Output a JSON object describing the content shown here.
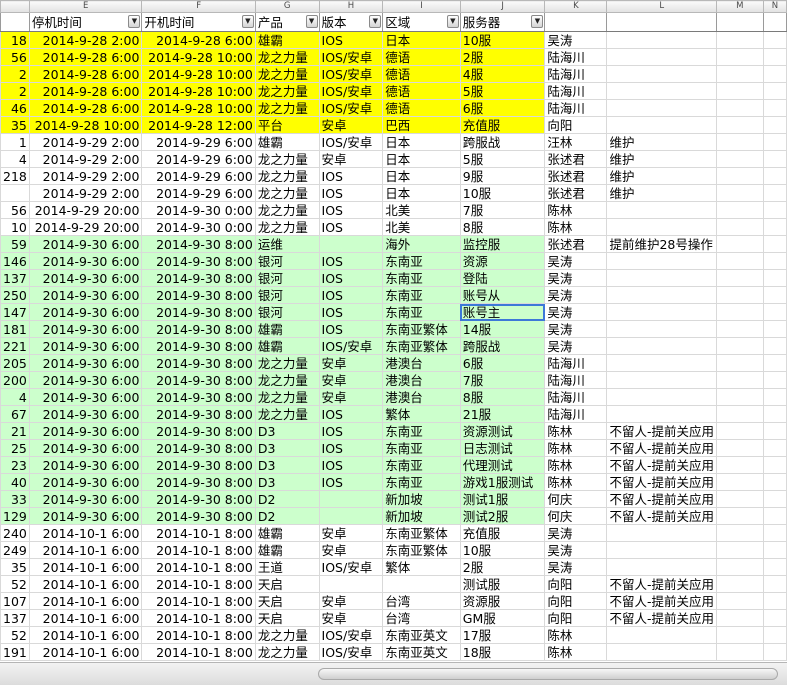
{
  "column_letters": [
    "",
    "E",
    "F",
    "G",
    "H",
    "I",
    "J",
    "K",
    "L",
    "M",
    "N"
  ],
  "filter_headers": [
    "",
    "停机时间",
    "开机时间",
    "产品",
    "版本",
    "区域",
    "服务器",
    "",
    "",
    "",
    ""
  ],
  "filter_icon": "dropdown-arrow-icon",
  "fill_colors": {
    "yellow": "#ffff00",
    "green": "#ccffcc",
    "selection": "#3d78d8"
  },
  "rows": [
    {
      "fill": "yellow",
      "cells": [
        "18",
        "2014-9-28 2:00",
        "2014-9-28 6:00",
        "雄霸",
        "IOS",
        "日本",
        "10服",
        "吴涛",
        "",
        ""
      ]
    },
    {
      "fill": "yellow",
      "cells": [
        "56",
        "2014-9-28 6:00",
        "2014-9-28 10:00",
        "龙之力量",
        "IOS/安卓",
        "德语",
        "2服",
        "陆海川",
        "",
        ""
      ]
    },
    {
      "fill": "yellow",
      "cells": [
        "2",
        "2014-9-28 6:00",
        "2014-9-28 10:00",
        "龙之力量",
        "IOS/安卓",
        "德语",
        "4服",
        "陆海川",
        "",
        ""
      ]
    },
    {
      "fill": "yellow",
      "cells": [
        "2",
        "2014-9-28 6:00",
        "2014-9-28 10:00",
        "龙之力量",
        "IOS/安卓",
        "德语",
        "5服",
        "陆海川",
        "",
        ""
      ]
    },
    {
      "fill": "yellow",
      "cells": [
        "46",
        "2014-9-28 6:00",
        "2014-9-28 10:00",
        "龙之力量",
        "IOS/安卓",
        "德语",
        "6服",
        "陆海川",
        "",
        ""
      ]
    },
    {
      "fill": "yellow",
      "cells": [
        "35",
        "2014-9-28 10:00",
        "2014-9-28 12:00",
        "平台",
        "安卓",
        "巴西",
        "充值服",
        "向阳",
        "",
        ""
      ]
    },
    {
      "fill": "white",
      "cells": [
        "1",
        "2014-9-29 2:00",
        "2014-9-29 6:00",
        "雄霸",
        "IOS/安卓",
        "日本",
        "跨服战",
        "汪林",
        "维护",
        ""
      ]
    },
    {
      "fill": "white",
      "cells": [
        "4",
        "2014-9-29 2:00",
        "2014-9-29 6:00",
        "龙之力量",
        "安卓",
        "日本",
        "5服",
        "张述君",
        "维护",
        ""
      ]
    },
    {
      "fill": "white",
      "cells": [
        "218",
        "2014-9-29 2:00",
        "2014-9-29 6:00",
        "龙之力量",
        "IOS",
        "日本",
        "9服",
        "张述君",
        "维护",
        ""
      ]
    },
    {
      "fill": "white",
      "cells": [
        "",
        "2014-9-29 2:00",
        "2014-9-29 6:00",
        "龙之力量",
        "IOS",
        "日本",
        "10服",
        "张述君",
        "维护",
        ""
      ]
    },
    {
      "fill": "white",
      "cells": [
        "56",
        "2014-9-29 20:00",
        "2014-9-30 0:00",
        "龙之力量",
        "IOS",
        "北美",
        "7服",
        "陈林",
        "",
        ""
      ]
    },
    {
      "fill": "white",
      "cells": [
        "10",
        "2014-9-29 20:00",
        "2014-9-30 0:00",
        "龙之力量",
        "IOS",
        "北美",
        "8服",
        "陈林",
        "",
        ""
      ]
    },
    {
      "fill": "green",
      "cells": [
        "59",
        "2014-9-30 6:00",
        "2014-9-30 8:00",
        "运维",
        "",
        "海外",
        "监控服",
        "张述君",
        "提前维护28号操作",
        ""
      ]
    },
    {
      "fill": "green",
      "cells": [
        "146",
        "2014-9-30 6:00",
        "2014-9-30 8:00",
        "银河",
        "IOS",
        "东南亚",
        "资源",
        "吴涛",
        "",
        ""
      ]
    },
    {
      "fill": "green",
      "cells": [
        "137",
        "2014-9-30 6:00",
        "2014-9-30 8:00",
        "银河",
        "IOS",
        "东南亚",
        "登陆",
        "吴涛",
        "",
        ""
      ]
    },
    {
      "fill": "green",
      "cells": [
        "250",
        "2014-9-30 6:00",
        "2014-9-30 8:00",
        "银河",
        "IOS",
        "东南亚",
        "账号从",
        "吴涛",
        "",
        ""
      ]
    },
    {
      "fill": "green",
      "cells": [
        "147",
        "2014-9-30 6:00",
        "2014-9-30 8:00",
        "银河",
        "IOS",
        "东南亚",
        "账号主",
        "吴涛",
        "",
        ""
      ]
    },
    {
      "fill": "green",
      "cells": [
        "181",
        "2014-9-30 6:00",
        "2014-9-30 8:00",
        "雄霸",
        "IOS",
        "东南亚繁体",
        "14服",
        "吴涛",
        "",
        ""
      ]
    },
    {
      "fill": "green",
      "cells": [
        "221",
        "2014-9-30 6:00",
        "2014-9-30 8:00",
        "雄霸",
        "IOS/安卓",
        "东南亚繁体",
        "跨服战",
        "吴涛",
        "",
        ""
      ]
    },
    {
      "fill": "green",
      "cells": [
        "205",
        "2014-9-30 6:00",
        "2014-9-30 8:00",
        "龙之力量",
        "安卓",
        "港澳台",
        "6服",
        "陆海川",
        "",
        ""
      ]
    },
    {
      "fill": "green",
      "cells": [
        "200",
        "2014-9-30 6:00",
        "2014-9-30 8:00",
        "龙之力量",
        "安卓",
        "港澳台",
        "7服",
        "陆海川",
        "",
        ""
      ]
    },
    {
      "fill": "green",
      "cells": [
        "4",
        "2014-9-30 6:00",
        "2014-9-30 8:00",
        "龙之力量",
        "安卓",
        "港澳台",
        "8服",
        "陆海川",
        "",
        ""
      ]
    },
    {
      "fill": "green",
      "cells": [
        "67",
        "2014-9-30 6:00",
        "2014-9-30 8:00",
        "龙之力量",
        "IOS",
        "繁体",
        "21服",
        "陆海川",
        "",
        ""
      ]
    },
    {
      "fill": "green",
      "cells": [
        "21",
        "2014-9-30 6:00",
        "2014-9-30 8:00",
        "D3",
        "IOS",
        "东南亚",
        "资源测试",
        "陈林",
        "不留人-提前关应用",
        ""
      ]
    },
    {
      "fill": "green",
      "cells": [
        "25",
        "2014-9-30 6:00",
        "2014-9-30 8:00",
        "D3",
        "IOS",
        "东南亚",
        "日志测试",
        "陈林",
        "不留人-提前关应用",
        ""
      ]
    },
    {
      "fill": "green",
      "cells": [
        "23",
        "2014-9-30 6:00",
        "2014-9-30 8:00",
        "D3",
        "IOS",
        "东南亚",
        "代理测试",
        "陈林",
        "不留人-提前关应用",
        ""
      ]
    },
    {
      "fill": "green",
      "cells": [
        "40",
        "2014-9-30 6:00",
        "2014-9-30 8:00",
        "D3",
        "IOS",
        "东南亚",
        "游戏1服测试",
        "陈林",
        "不留人-提前关应用",
        ""
      ]
    },
    {
      "fill": "green",
      "cells": [
        "33",
        "2014-9-30 6:00",
        "2014-9-30 8:00",
        "D2",
        "",
        "新加坡",
        "测试1服",
        "何庆",
        "不留人-提前关应用",
        ""
      ]
    },
    {
      "fill": "green",
      "cells": [
        "129",
        "2014-9-30 6:00",
        "2014-9-30 8:00",
        "D2",
        "",
        "新加坡",
        "测试2服",
        "何庆",
        "不留人-提前关应用",
        ""
      ]
    },
    {
      "fill": "white",
      "cells": [
        "240",
        "2014-10-1 6:00",
        "2014-10-1 8:00",
        "雄霸",
        "安卓",
        "东南亚繁体",
        "充值服",
        "吴涛",
        "",
        ""
      ]
    },
    {
      "fill": "white",
      "cells": [
        "249",
        "2014-10-1 6:00",
        "2014-10-1 8:00",
        "雄霸",
        "安卓",
        "东南亚繁体",
        "10服",
        "吴涛",
        "",
        ""
      ]
    },
    {
      "fill": "white",
      "cells": [
        "35",
        "2014-10-1 6:00",
        "2014-10-1 8:00",
        "王道",
        "IOS/安卓",
        "繁体",
        "2服",
        "吴涛",
        "",
        ""
      ]
    },
    {
      "fill": "white",
      "cells": [
        "52",
        "2014-10-1 6:00",
        "2014-10-1 8:00",
        "天启",
        "",
        "",
        "测试服",
        "向阳",
        "不留人-提前关应用",
        ""
      ]
    },
    {
      "fill": "white",
      "cells": [
        "107",
        "2014-10-1 6:00",
        "2014-10-1 8:00",
        "天启",
        "安卓",
        "台湾",
        "资源服",
        "向阳",
        "不留人-提前关应用",
        ""
      ]
    },
    {
      "fill": "white",
      "cells": [
        "137",
        "2014-10-1 6:00",
        "2014-10-1 8:00",
        "天启",
        "安卓",
        "台湾",
        "GM服",
        "向阳",
        "不留人-提前关应用",
        ""
      ]
    },
    {
      "fill": "white",
      "cells": [
        "52",
        "2014-10-1 6:00",
        "2014-10-1 8:00",
        "龙之力量",
        "IOS/安卓",
        "东南亚英文",
        "17服",
        "陈林",
        "",
        ""
      ]
    },
    {
      "fill": "white",
      "cells": [
        "191",
        "2014-10-1 6:00",
        "2014-10-1 8:00",
        "龙之力量",
        "IOS/安卓",
        "东南亚英文",
        "18服",
        "陈林",
        "",
        ""
      ]
    }
  ]
}
